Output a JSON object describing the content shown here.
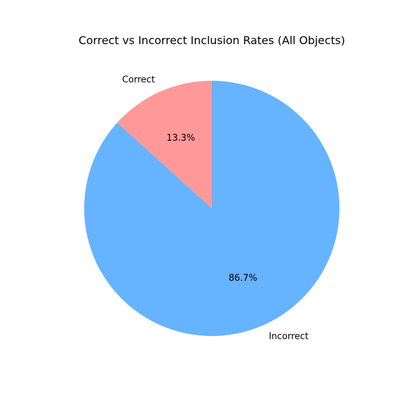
{
  "chart_data": {
    "type": "pie",
    "title": "Correct vs Incorrect Inclusion Rates (All Objects)",
    "slices": [
      {
        "label": "Correct",
        "value": 13.3,
        "pct_label": "13.3%",
        "color": "#ff9999"
      },
      {
        "label": "Incorrect",
        "value": 86.7,
        "pct_label": "86.7%",
        "color": "#66b3ff"
      }
    ],
    "start_angle_deg": 90,
    "direction": "counterclockwise"
  }
}
